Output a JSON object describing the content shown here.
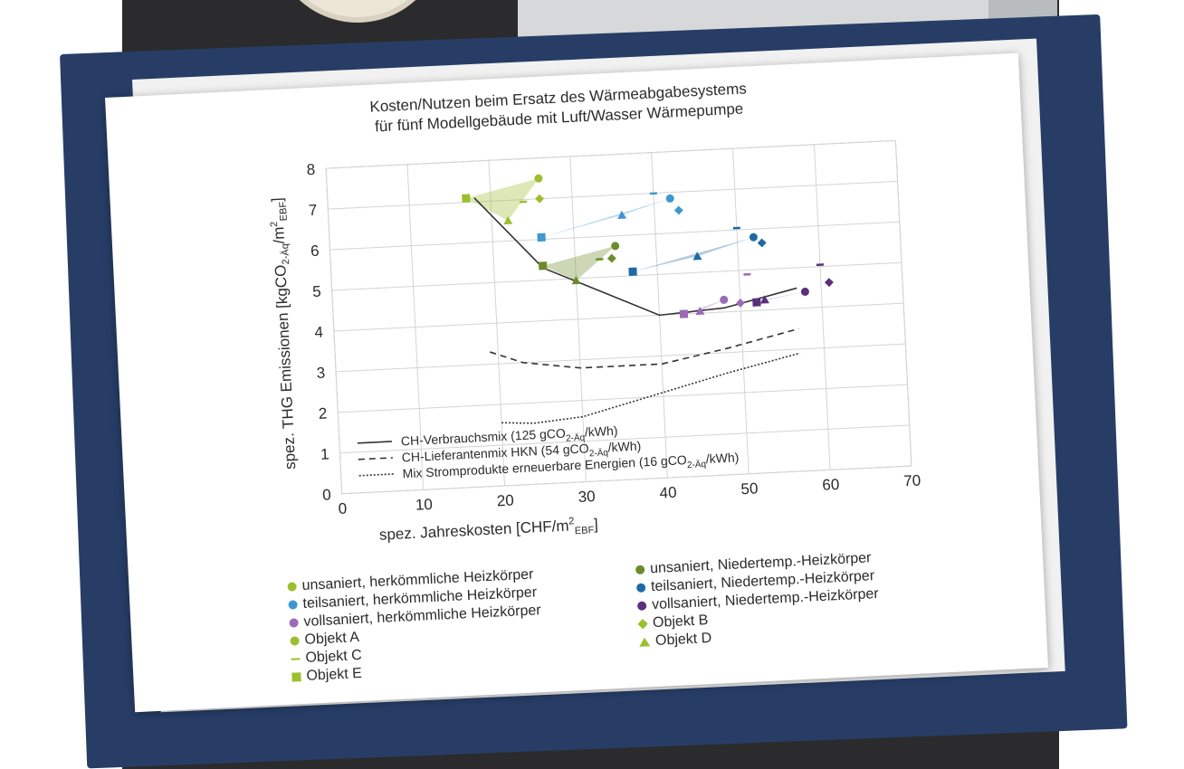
{
  "chart_data": {
    "type": "scatter",
    "title": [
      "Kosten/Nutzen beim Ersatz des Wärmeabgabesystems",
      "für fünf Modellgebäude mit Luft/Wasser Wärmepumpe"
    ],
    "xlabel": "spez. Jahreskosten [CHF/m²EBF]",
    "ylabel": "spez. THG Emissionen [kgCO2-Äq/m²EBF]",
    "xlim": [
      0,
      70
    ],
    "ylim": [
      0,
      8
    ],
    "xticks": [
      "0",
      "10",
      "20",
      "30",
      "40",
      "50",
      "60",
      "70"
    ],
    "yticks": [
      "0",
      "1",
      "2",
      "3",
      "4",
      "5",
      "6",
      "7",
      "8"
    ],
    "grid": true,
    "lines": [
      {
        "name": "CH-Verbrauchsmix (125 gCO2-Äq/kWh)",
        "style": "solid",
        "x": [
          18,
          26,
          40,
          48,
          57
        ],
        "y": [
          7.1,
          5.3,
          4.0,
          4.1,
          4.5
        ]
      },
      {
        "name": "CH-Lieferantenmix HKN (54 gCO2-Äq/kWh)",
        "style": "dashed",
        "x": [
          19,
          23,
          30,
          40,
          48,
          57
        ],
        "y": [
          3.3,
          3.0,
          2.8,
          2.8,
          3.1,
          3.5
        ]
      },
      {
        "name": "Mix Stromprodukte erneuerbare Energien (16 gCO2-Äq/kWh)",
        "style": "dotted",
        "x": [
          20,
          24,
          30,
          40,
          48,
          57
        ],
        "y": [
          1.55,
          1.5,
          1.6,
          2.1,
          2.5,
          2.9
        ]
      }
    ],
    "series": [
      {
        "name": "unsaniert, herkömmliche Heizkörper",
        "color": "#9cbf2e",
        "points": [
          {
            "obj": "A",
            "x": 26,
            "y": 7.5
          },
          {
            "obj": "B",
            "x": 26,
            "y": 7.0
          },
          {
            "obj": "C",
            "x": 24,
            "y": 6.95
          },
          {
            "obj": "D",
            "x": 22,
            "y": 6.5
          },
          {
            "obj": "E",
            "x": 17,
            "y": 7.1
          }
        ]
      },
      {
        "name": "unsaniert, Niedertemp.-Heizkörper",
        "color": "#6b8c2a",
        "points": [
          {
            "obj": "A",
            "x": 35,
            "y": 5.75
          },
          {
            "obj": "B",
            "x": 34.5,
            "y": 5.45
          },
          {
            "obj": "C",
            "x": 33,
            "y": 5.45
          },
          {
            "obj": "D",
            "x": 30,
            "y": 4.95
          },
          {
            "obj": "E",
            "x": 26,
            "y": 5.35
          }
        ]
      },
      {
        "name": "teilsaniert, herkömmliche Heizkörper",
        "color": "#3f97d0",
        "points": [
          {
            "obj": "A",
            "x": 42,
            "y": 6.85
          },
          {
            "obj": "B",
            "x": 43,
            "y": 6.55
          },
          {
            "obj": "C",
            "x": 40,
            "y": 7.0
          },
          {
            "obj": "D",
            "x": 36,
            "y": 6.5
          },
          {
            "obj": "E",
            "x": 26,
            "y": 6.05
          }
        ]
      },
      {
        "name": "teilsaniert, Niedertemp.-Heizkörper",
        "color": "#1f6aa5",
        "points": [
          {
            "obj": "A",
            "x": 52,
            "y": 5.8
          },
          {
            "obj": "B",
            "x": 53,
            "y": 5.65
          },
          {
            "obj": "C",
            "x": 50,
            "y": 6.05
          },
          {
            "obj": "D",
            "x": 45,
            "y": 5.4
          },
          {
            "obj": "E",
            "x": 37,
            "y": 5.1
          }
        ]
      },
      {
        "name": "vollsaniert, herkömmliche Heizkörper",
        "color": "#9b6bb8",
        "points": [
          {
            "obj": "A",
            "x": 48,
            "y": 4.3
          },
          {
            "obj": "B",
            "x": 50,
            "y": 4.2
          },
          {
            "obj": "C",
            "x": 51,
            "y": 4.9
          },
          {
            "obj": "D",
            "x": 45,
            "y": 4.05
          },
          {
            "obj": "E",
            "x": 43,
            "y": 4.0
          }
        ]
      },
      {
        "name": "vollsaniert, Niedertemp.-Heizkörper",
        "color": "#5a2f7c",
        "points": [
          {
            "obj": "A",
            "x": 58,
            "y": 4.4
          },
          {
            "obj": "B",
            "x": 61,
            "y": 4.6
          },
          {
            "obj": "C",
            "x": 60,
            "y": 5.05
          },
          {
            "obj": "D",
            "x": 53,
            "y": 4.25
          },
          {
            "obj": "E",
            "x": 52,
            "y": 4.2
          }
        ]
      }
    ],
    "legend_objects": [
      "Objekt A",
      "Objekt B",
      "Objekt C",
      "Objekt D",
      "Objekt E"
    ],
    "legend_lines": [
      {
        "main": "CH-Verbrauchsmix (125 gCO",
        "sub": "2-Äq",
        "tail": "/kWh)"
      },
      {
        "main": "CH-Lieferantenmix HKN (54 gCO",
        "sub": "2-Äq",
        "tail": "/kWh)"
      },
      {
        "main": "Mix Stromprodukte erneuerbare Energien (16 gCO",
        "sub": "2-Äq",
        "tail": "/kWh)"
      }
    ],
    "axis_text": {
      "x_main": "spez. Jahreskosten [CHF/m",
      "x_sup": "2",
      "x_sub": "EBF",
      "x_tail": "]",
      "y_main": "spez. THG Emissionen [kgCO",
      "y_sub1": "2-Äq",
      "y_mid": "/m",
      "y_sup": "2",
      "y_sub2": "EBF",
      "y_tail": "]"
    }
  }
}
